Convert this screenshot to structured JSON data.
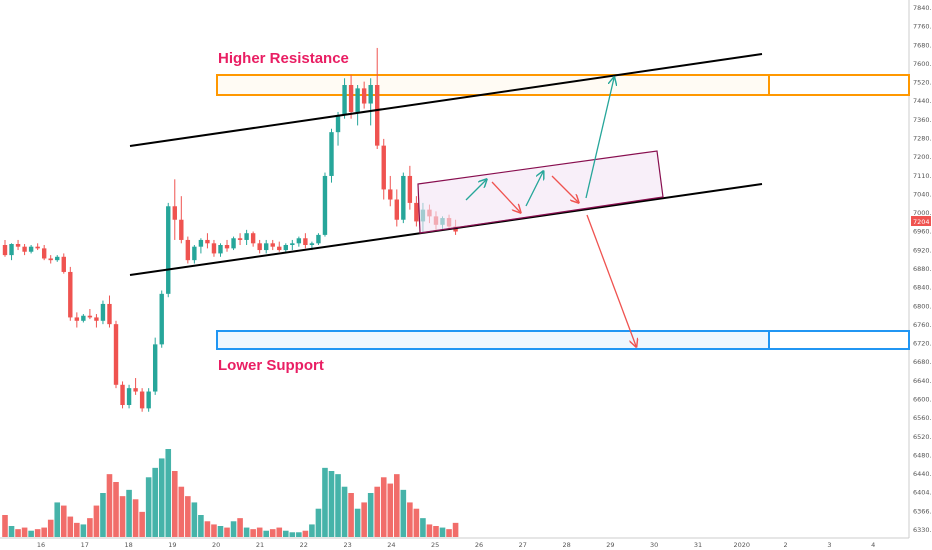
{
  "chart_data": {
    "type": "candlestick",
    "title": "",
    "annotations": {
      "resistance_label": "Higher Resistance",
      "support_label": "Lower Support"
    },
    "price_axis": {
      "ticks": [
        "7840.00",
        "7760.00",
        "7680.00",
        "7600.00",
        "7520.00",
        "7440.00",
        "7360.00",
        "7280.00",
        "7200.00",
        "7110.00",
        "7040.00",
        "7000.00",
        "6960.00",
        "6920.00",
        "6880.00",
        "6840.00",
        "6800.00",
        "6760.00",
        "6720.00",
        "6680.00",
        "6640.00",
        "6600.00",
        "6560.00",
        "6520.00",
        "6480.00",
        "6440.00",
        "6404.00",
        "6366.00",
        "6330.00"
      ],
      "current_price_label": "7204"
    },
    "time_axis": {
      "labels": [
        "16",
        "17",
        "18",
        "19",
        "20",
        "21",
        "22",
        "23",
        "24",
        "25",
        "26",
        "27",
        "28",
        "29",
        "30",
        "31",
        "2020",
        "2",
        "3",
        "4"
      ]
    },
    "zones": [
      {
        "name": "higher-resistance",
        "from": 7570,
        "to": 7630,
        "color": "#ff9800"
      },
      {
        "name": "lower-support",
        "from": 6820,
        "to": 6870,
        "color": "#2196f3"
      }
    ],
    "colors": {
      "up": "#26a69a",
      "down": "#ef5350",
      "channel": "#000000",
      "projection": "#880e4f",
      "projection_fill": "#f3e5f5"
    },
    "candles": [
      [
        7125,
        7140,
        7090,
        7095
      ],
      [
        7095,
        7130,
        7080,
        7128
      ],
      [
        7128,
        7140,
        7110,
        7120
      ],
      [
        7120,
        7128,
        7095,
        7105
      ],
      [
        7105,
        7125,
        7100,
        7120
      ],
      [
        7120,
        7130,
        7110,
        7115
      ],
      [
        7115,
        7125,
        7080,
        7085
      ],
      [
        7085,
        7095,
        7070,
        7080
      ],
      [
        7080,
        7095,
        7075,
        7090
      ],
      [
        7090,
        7100,
        7040,
        7045
      ],
      [
        7045,
        7060,
        6900,
        6910
      ],
      [
        6910,
        6925,
        6880,
        6900
      ],
      [
        6900,
        6920,
        6895,
        6915
      ],
      [
        6915,
        6935,
        6905,
        6910
      ],
      [
        6910,
        6920,
        6880,
        6900
      ],
      [
        6900,
        6960,
        6890,
        6950
      ],
      [
        6950,
        6975,
        6880,
        6890
      ],
      [
        6890,
        6900,
        6700,
        6710
      ],
      [
        6710,
        6720,
        6640,
        6650
      ],
      [
        6650,
        6710,
        6640,
        6700
      ],
      [
        6700,
        6730,
        6680,
        6690
      ],
      [
        6690,
        6700,
        6630,
        6640
      ],
      [
        6640,
        6700,
        6630,
        6690
      ],
      [
        6690,
        6850,
        6680,
        6830
      ],
      [
        6830,
        6990,
        6820,
        6980
      ],
      [
        6980,
        7250,
        6970,
        7240
      ],
      [
        7240,
        7320,
        7140,
        7200
      ],
      [
        7200,
        7270,
        7130,
        7140
      ],
      [
        7140,
        7150,
        7070,
        7080
      ],
      [
        7080,
        7125,
        7070,
        7120
      ],
      [
        7120,
        7145,
        7100,
        7140
      ],
      [
        7140,
        7160,
        7115,
        7130
      ],
      [
        7130,
        7140,
        7090,
        7100
      ],
      [
        7100,
        7130,
        7090,
        7125
      ],
      [
        7125,
        7140,
        7105,
        7115
      ],
      [
        7115,
        7150,
        7110,
        7145
      ],
      [
        7145,
        7160,
        7125,
        7140
      ],
      [
        7140,
        7170,
        7125,
        7160
      ],
      [
        7160,
        7165,
        7120,
        7130
      ],
      [
        7130,
        7140,
        7100,
        7110
      ],
      [
        7110,
        7140,
        7100,
        7130
      ],
      [
        7130,
        7140,
        7110,
        7120
      ],
      [
        7120,
        7135,
        7105,
        7110
      ],
      [
        7110,
        7130,
        7100,
        7125
      ],
      [
        7125,
        7140,
        7110,
        7130
      ],
      [
        7130,
        7150,
        7120,
        7145
      ],
      [
        7145,
        7160,
        7115,
        7125
      ],
      [
        7125,
        7135,
        7110,
        7130
      ],
      [
        7130,
        7160,
        7125,
        7155
      ],
      [
        7155,
        7340,
        7150,
        7330
      ],
      [
        7330,
        7470,
        7310,
        7460
      ],
      [
        7460,
        7520,
        7420,
        7510
      ],
      [
        7510,
        7620,
        7500,
        7600
      ],
      [
        7600,
        7630,
        7500,
        7520
      ],
      [
        7520,
        7600,
        7480,
        7590
      ],
      [
        7590,
        7610,
        7530,
        7545
      ],
      [
        7545,
        7620,
        7480,
        7600
      ],
      [
        7600,
        7710,
        7410,
        7420
      ],
      [
        7420,
        7440,
        7260,
        7290
      ],
      [
        7290,
        7330,
        7240,
        7260
      ],
      [
        7260,
        7290,
        7180,
        7200
      ],
      [
        7200,
        7340,
        7190,
        7330
      ],
      [
        7330,
        7360,
        7230,
        7250
      ],
      [
        7250,
        7270,
        7180,
        7195
      ],
      [
        7195,
        7250,
        7160,
        7230
      ],
      [
        7230,
        7245,
        7190,
        7210
      ],
      [
        7210,
        7225,
        7170,
        7185
      ],
      [
        7185,
        7210,
        7170,
        7205
      ],
      [
        7205,
        7215,
        7170,
        7180
      ],
      [
        7180,
        7200,
        7155,
        7165
      ]
    ],
    "volumes": [
      14,
      7,
      5,
      6,
      4,
      5,
      6,
      11,
      22,
      20,
      13,
      9,
      8,
      12,
      20,
      28,
      40,
      35,
      26,
      30,
      24,
      16,
      38,
      44,
      50,
      56,
      42,
      32,
      26,
      22,
      14,
      10,
      8,
      7,
      6,
      10,
      12,
      6,
      5,
      6,
      4,
      5,
      6,
      4,
      3,
      3,
      4,
      8,
      18,
      44,
      42,
      40,
      32,
      28,
      18,
      22,
      28,
      32,
      38,
      34,
      40,
      30,
      22,
      18,
      12,
      8,
      7,
      6,
      5,
      9
    ]
  }
}
